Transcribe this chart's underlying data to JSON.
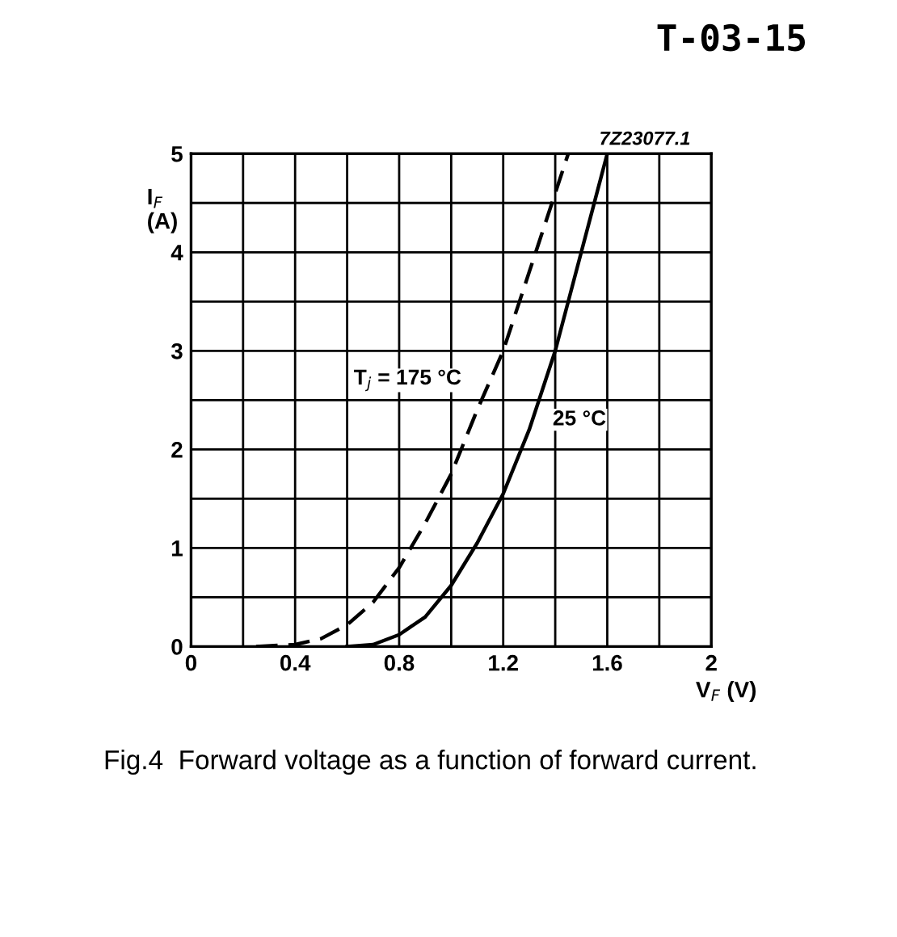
{
  "chart_data": {
    "type": "line",
    "title": "T-03-15",
    "xlabel": "V$_{F}$ (V)",
    "ylabel": "I$_{F}$\n(A)",
    "xlim": [
      0,
      2
    ],
    "ylim": [
      0,
      5
    ],
    "xticks": [
      0,
      {
        "value": 0.2,
        "label": null
      },
      0.4,
      {
        "value": 0.6,
        "label": null
      },
      0.8,
      {
        "value": 1.0,
        "label": null
      },
      1.2,
      {
        "value": 1.4,
        "label": null
      },
      1.6,
      {
        "value": 1.8,
        "label": null
      },
      2
    ],
    "yticks": [
      0,
      {
        "value": 0.5,
        "label": null
      },
      1,
      {
        "value": 1.5,
        "label": null
      },
      2,
      {
        "value": 2.5,
        "label": null
      },
      3,
      {
        "value": 3.5,
        "label": null
      },
      4,
      {
        "value": 4.5,
        "label": null
      },
      5
    ],
    "grid": true,
    "marker": "none",
    "series": [
      {
        "name": "T$_{j}$ = 175 °C",
        "color": "#000000",
        "line_style": "dashed",
        "x": [
          0.25,
          0.4,
          0.5,
          0.6,
          0.7,
          0.8,
          0.9,
          1.0,
          1.1,
          1.2,
          1.3,
          1.4,
          1.45
        ],
        "values": [
          0,
          0.02,
          0.08,
          0.22,
          0.45,
          0.8,
          1.25,
          1.75,
          2.4,
          3.0,
          3.8,
          4.6,
          5.0
        ]
      },
      {
        "name": "25 °C",
        "color": "#000000",
        "line_style": "solid",
        "x": [
          0.6,
          0.7,
          0.8,
          0.9,
          1.0,
          1.1,
          1.2,
          1.3,
          1.4,
          1.5,
          1.6
        ],
        "values": [
          0,
          0.02,
          0.12,
          0.3,
          0.62,
          1.05,
          1.55,
          2.2,
          3.0,
          4.0,
          5.0
        ]
      }
    ],
    "annotations": [
      "7Z23077.1",
      "Fig.4  Forward voltage as a function of forward current."
    ]
  }
}
